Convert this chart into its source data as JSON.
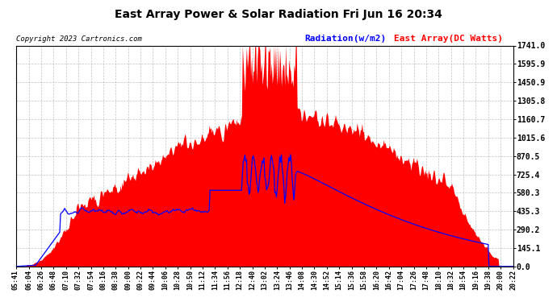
{
  "title": "East Array Power & Solar Radiation Fri Jun 16 20:34",
  "copyright": "Copyright 2023 Cartronics.com",
  "legend_radiation": "Radiation(w/m2)",
  "legend_array": "East Array(DC Watts)",
  "ymax": 1741.0,
  "ymin": 0.0,
  "yticks": [
    0.0,
    145.1,
    290.2,
    435.3,
    580.3,
    725.4,
    870.5,
    1015.6,
    1160.7,
    1305.8,
    1450.9,
    1595.9,
    1741.0
  ],
  "ytick_labels": [
    "0.0",
    "145.1",
    "290.2",
    "435.3",
    "580.3",
    "725.4",
    "870.5",
    "1015.6",
    "1160.7",
    "1305.8",
    "1450.9",
    "1595.9",
    "1741.0"
  ],
  "bg_color": "#ffffff",
  "grid_color": "#aaaaaa",
  "fill_color": "#ff0000",
  "line_color": "#0000ff",
  "title_color": "#000000",
  "copyright_color": "#000000",
  "radiation_legend_color": "#0000ff",
  "array_legend_color": "#ff0000",
  "time_labels": [
    "05:41",
    "06:04",
    "06:26",
    "06:48",
    "07:10",
    "07:32",
    "07:54",
    "08:16",
    "08:38",
    "09:00",
    "09:22",
    "09:44",
    "10:06",
    "10:28",
    "10:50",
    "11:12",
    "11:34",
    "11:56",
    "12:18",
    "12:40",
    "13:02",
    "13:24",
    "13:46",
    "14:08",
    "14:30",
    "14:52",
    "15:14",
    "15:36",
    "15:58",
    "16:20",
    "16:42",
    "17:04",
    "17:26",
    "17:48",
    "18:10",
    "18:32",
    "18:54",
    "19:16",
    "19:38",
    "20:00",
    "20:22"
  ],
  "start_time": "05:41",
  "end_time": "20:22"
}
